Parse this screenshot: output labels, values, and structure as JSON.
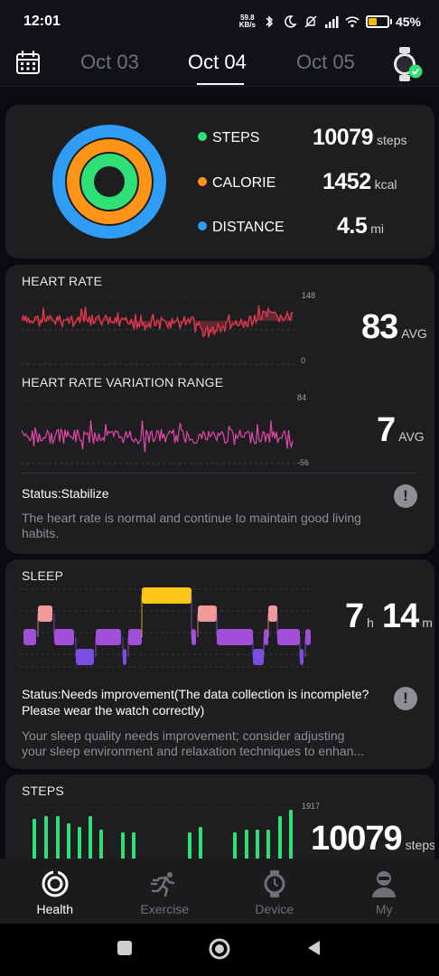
{
  "status_bar": {
    "time": "12:01",
    "net_speed_value": "59.8",
    "net_speed_unit": "KB/s",
    "battery_percent": "45%",
    "battery_level": 0.45,
    "icons": [
      "bluetooth-icon",
      "moon-icon",
      "mute-icon",
      "signal-icon",
      "wifi-icon",
      "battery-icon"
    ]
  },
  "header": {
    "dates": [
      "Oct 03",
      "Oct 04",
      "Oct 05"
    ],
    "active_date_index": 1
  },
  "summary": {
    "steps": {
      "label": "STEPS",
      "value": "10079",
      "unit": "steps",
      "color": "#2fe076"
    },
    "calorie": {
      "label": "CALORIE",
      "value": "1452",
      "unit": "kcal",
      "color": "#ff9418"
    },
    "distance": {
      "label": "DISTANCE",
      "value": "4.5",
      "unit": "mi",
      "color": "#2f9cf5"
    }
  },
  "heart": {
    "title": "HEART RATE",
    "avg_value": "83",
    "avg_unit": "AVG",
    "axis_max": "148",
    "axis_min": "0",
    "variation_title": "HEART RATE VARIATION RANGE",
    "variation_avg_value": "7",
    "variation_avg_unit": "AVG",
    "variation_axis_max": "84",
    "variation_axis_min": "-56",
    "status": "Status:Stabilize",
    "description_line1": "The heart rate is normal and continue to maintain good living",
    "description_line2": "habits."
  },
  "sleep": {
    "title": "SLEEP",
    "hours": "7",
    "hours_unit": "h",
    "minutes": "14",
    "minutes_unit": "m",
    "status_line1": "Status:Needs improvement(The data collection is incomplete?",
    "status_line2": "Please wear the watch correctly)",
    "description_line1": "Your sleep quality needs improvement; consider adjusting",
    "description_line2": "your sleep environment and relaxation techniques to enhan..."
  },
  "steps_card": {
    "title": "STEPS",
    "axis_max": "1917",
    "value": "10079",
    "unit": "steps"
  },
  "bottom_nav": [
    {
      "label": "Health",
      "icon": "health-icon"
    },
    {
      "label": "Exercise",
      "icon": "exercise-icon"
    },
    {
      "label": "Device",
      "icon": "watch-icon"
    },
    {
      "label": "My",
      "icon": "person-icon"
    }
  ],
  "colors": {
    "heart_line": "#e23a4c",
    "variation_line": "#e146a8",
    "sleep_awake": "#ffc61a",
    "sleep_rem": "#f29a9a",
    "sleep_light": "#a04fd8",
    "sleep_deep": "#7a4ee0",
    "steps_bar": "#2fe076"
  }
}
